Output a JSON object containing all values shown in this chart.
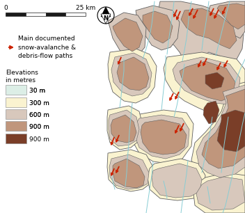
{
  "background_color": "#ffffff",
  "legend_title1": "Main documented",
  "legend_title2": "snow-avalanche &",
  "legend_title3": "debris-flow paths",
  "elevation_title1": "Elevations",
  "elevation_title2": "in metres",
  "elevations": [
    "30 m",
    "300 m",
    "600 m",
    "900 m"
  ],
  "elevation_colors": [
    "#dceee6",
    "#faf3d0",
    "#d8c8bc",
    "#c0967c",
    "#7a3e28"
  ],
  "sea_color": "#ffffff",
  "outline_color": "#606060",
  "water_color": "#88cdd4",
  "scalebar_color": "#1a1a1a",
  "arrow_color": "#cc2200",
  "font_size": 6.5,
  "font_size_scale": 6.5
}
